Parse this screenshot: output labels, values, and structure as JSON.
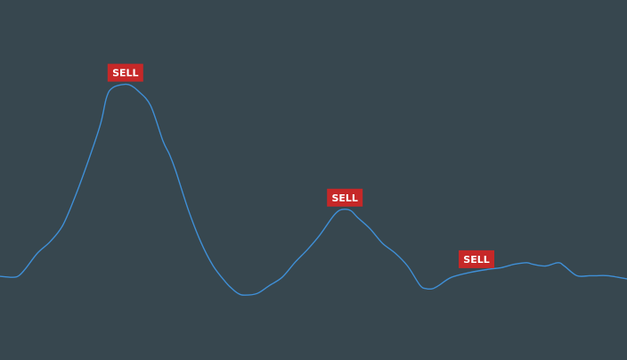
{
  "colors": {
    "background": "#37474f",
    "line": "#3f8fd6",
    "signal": "#c62828",
    "signal_text": "#ffffff"
  },
  "chart_data": {
    "type": "line",
    "title": "",
    "xlabel": "",
    "ylabel": "",
    "grid": false,
    "legend": "none",
    "xlim": [
      0,
      100
    ],
    "ylim": [
      0,
      100
    ],
    "series": [
      {
        "values": [
          [
            0,
            20.3
          ],
          [
            2,
            20.0
          ],
          [
            3,
            20.5
          ],
          [
            4,
            22.5
          ],
          [
            6,
            27.5
          ],
          [
            8,
            31.0
          ],
          [
            10,
            36.0
          ],
          [
            12,
            45.0
          ],
          [
            14,
            55.5
          ],
          [
            16,
            67.0
          ],
          [
            17,
            75.5
          ],
          [
            18,
            78.5
          ],
          [
            20,
            79.5
          ],
          [
            21,
            79.0
          ],
          [
            22,
            77.5
          ],
          [
            24,
            73.0
          ],
          [
            26,
            62.0
          ],
          [
            27,
            58.0
          ],
          [
            28,
            53.0
          ],
          [
            30,
            41.0
          ],
          [
            32,
            31.0
          ],
          [
            34,
            23.5
          ],
          [
            36,
            18.5
          ],
          [
            37,
            16.5
          ],
          [
            38,
            15.0
          ],
          [
            39,
            14.5
          ],
          [
            41,
            15.0
          ],
          [
            43,
            17.5
          ],
          [
            45,
            20.0
          ],
          [
            47,
            24.5
          ],
          [
            49,
            28.5
          ],
          [
            51,
            33.0
          ],
          [
            53,
            38.5
          ],
          [
            54,
            40.5
          ],
          [
            55,
            41.0
          ],
          [
            56,
            40.5
          ],
          [
            57,
            38.5
          ],
          [
            59,
            35.0
          ],
          [
            61,
            30.5
          ],
          [
            63,
            27.5
          ],
          [
            65,
            23.5
          ],
          [
            67,
            17.5
          ],
          [
            68,
            16.5
          ],
          [
            69,
            16.5
          ],
          [
            70,
            17.5
          ],
          [
            72,
            20.0
          ],
          [
            75,
            21.5
          ],
          [
            78,
            22.5
          ],
          [
            80,
            23.0
          ],
          [
            82,
            24.0
          ],
          [
            84,
            24.5
          ],
          [
            85,
            24.0
          ],
          [
            87,
            23.5
          ],
          [
            89,
            24.5
          ],
          [
            90,
            23.5
          ],
          [
            92,
            20.5
          ],
          [
            94,
            20.5
          ],
          [
            95,
            20.5
          ],
          [
            97,
            20.5
          ],
          [
            100,
            19.5
          ]
        ]
      }
    ],
    "signals": [
      {
        "x": 20,
        "y": 79.5,
        "label": "SELL"
      },
      {
        "x": 55,
        "y": 41.0,
        "label": "SELL"
      },
      {
        "x": 76,
        "y": 22.0,
        "label": "SELL"
      }
    ]
  }
}
